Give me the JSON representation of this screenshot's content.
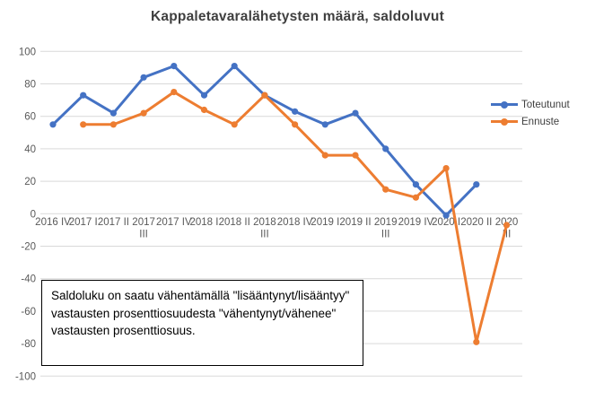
{
  "chart_data": {
    "type": "line",
    "title": "Kappaletavaralähetysten määrä, saldoluvut",
    "categories": [
      "2016 IV",
      "2017 I",
      "2017 II",
      "2017 III",
      "2017 IV",
      "2018 I",
      "2018 II",
      "2018 III",
      "2018 IV",
      "2019 I",
      "2019 II",
      "2019 III",
      "2019 IV",
      "2020 I",
      "2020 II",
      "2020 III"
    ],
    "series": [
      {
        "name": "Toteutunut",
        "color": "#4472C4",
        "values": [
          55,
          73,
          62,
          84,
          91,
          73,
          91,
          73,
          63,
          55,
          62,
          40,
          18,
          -1,
          18,
          null
        ]
      },
      {
        "name": "Ennuste",
        "color": "#ED7D31",
        "values": [
          null,
          55,
          55,
          62,
          75,
          64,
          55,
          73,
          55,
          36,
          36,
          15,
          10,
          28,
          -79,
          -7
        ]
      }
    ],
    "ylim": [
      -100,
      100
    ],
    "y_ticks": [
      100,
      80,
      60,
      40,
      20,
      0,
      -20,
      -40,
      -60,
      -80,
      -100
    ],
    "grid": "horizontal",
    "gridline_color": "#D9D9D9",
    "axis_text_color": "#595959",
    "legend_position": "right",
    "annotation": "Saldoluku on saatu vähentämällä \"lisääntynyt/lisääntyy\" vastausten prosenttiosuudesta \"vähentynyt/vähenee\" vastausten prosenttiosuus."
  }
}
